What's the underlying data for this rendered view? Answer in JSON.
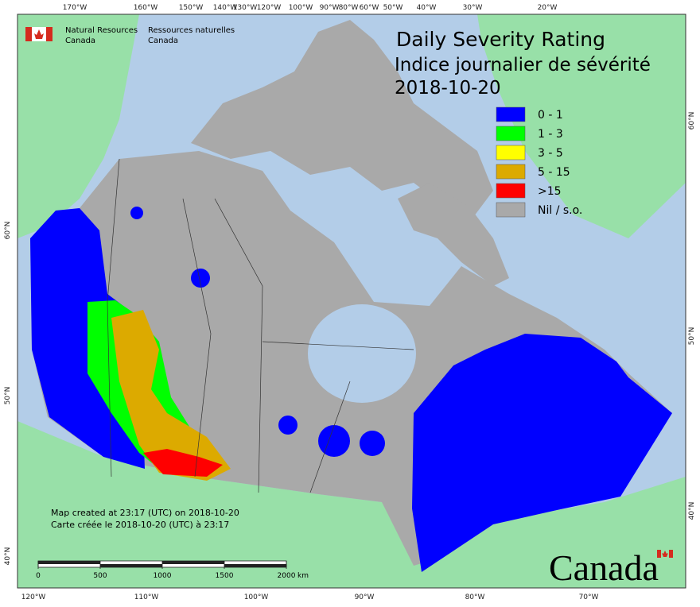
{
  "header": {
    "agency_en": "Natural Resources",
    "agency_en_2": "Canada",
    "agency_fr": "Ressources naturelles",
    "agency_fr_2": "Canada"
  },
  "title": {
    "line1": "Daily Severity Rating",
    "line2": "Indice journalier de sévérité",
    "date": "2018-10-20"
  },
  "legend": [
    {
      "label": "0 - 1",
      "color": "#0000ff"
    },
    {
      "label": "1 - 3",
      "color": "#00ff00"
    },
    {
      "label": "3 - 5",
      "color": "#ffff00"
    },
    {
      "label": "5 - 15",
      "color": "#dcaa00"
    },
    {
      "label": ">15",
      "color": "#ff0000"
    },
    {
      "label": "Nil / s.o.",
      "color": "#a9a9a9"
    }
  ],
  "graticule": {
    "top": [
      "170°W",
      "160°W",
      "150°W",
      "140°W",
      "130°W",
      "120°W",
      "100°W",
      "90°W",
      "80°W",
      "60°W",
      "50°W",
      "40°W",
      "30°W",
      "20°W"
    ],
    "bottom": [
      "120°W",
      "110°W",
      "100°W",
      "90°W",
      "80°W",
      "70°W"
    ],
    "left": [
      "60°N",
      "50°N",
      "40°N"
    ],
    "right": [
      "60°N",
      "50°N",
      "40°N"
    ]
  },
  "notes": {
    "en": "Map created at 23:17 (UTC) on 2018-10-20",
    "fr": "Carte créée le 2018-10-20 (UTC) à 23:17"
  },
  "scale": {
    "ticks": [
      0,
      500,
      1000,
      1500,
      2000
    ],
    "unit": "km"
  },
  "wordmark": "Canada"
}
